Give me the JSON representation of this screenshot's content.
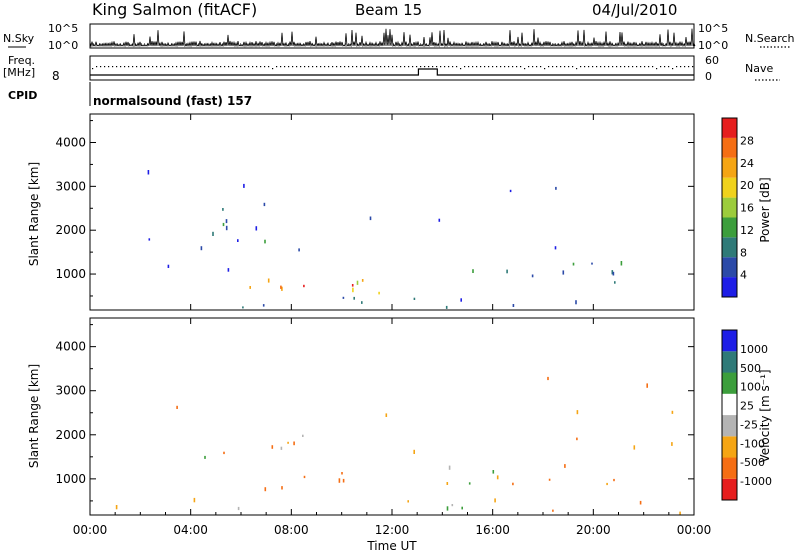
{
  "header": {
    "station": "King Salmon (fitACF)",
    "beam": "Beam 15",
    "date": "04/Jul/2010"
  },
  "status": {
    "nsky_label": "N.Sky",
    "nsky_ticks": [
      "10^5",
      "10^0"
    ],
    "nsearch_label": "N.Search",
    "nsearch_ticks": [
      "10^5",
      "10^0"
    ],
    "freq_label": "Freq.",
    "freq_unit": "[MHz]",
    "freq_ticks": [
      "8"
    ],
    "nave_label": "Nave",
    "nave_ticks": [
      "60",
      "0"
    ],
    "cpid_label": "CPID",
    "cpid_text": "normalsound (fast) 157"
  },
  "colors": {
    "power": [
      "#1e1ee6",
      "#2b4aa8",
      "#2f7a78",
      "#3c9e3c",
      "#9ccc3c",
      "#f0d21c",
      "#f5a514",
      "#f56e14",
      "#e61e1e"
    ],
    "velocity": [
      "#e61e1e",
      "#f56e14",
      "#f5a514",
      "#b4b4b4",
      "#ffffff",
      "#3c9e3c",
      "#2f7a78",
      "#1e1ee6"
    ]
  },
  "chart_data": [
    {
      "type": "heatmap",
      "panel": "power",
      "ylabel": "Slant Range [km]",
      "ylim": [
        180,
        4650
      ],
      "xlim_hours": [
        0,
        24
      ],
      "y_ticks": [
        1000,
        2000,
        3000,
        4000
      ],
      "colorbar": {
        "label": "Power [dB]",
        "ticks": [
          "28",
          "24",
          "20",
          "16",
          "12",
          "8",
          "4"
        ],
        "range": [
          0,
          30
        ]
      },
      "echo_regions": [
        {
          "t0": 5.5,
          "t1": 13.0,
          "r0": 450,
          "r1": 900,
          "level": 18
        },
        {
          "t0": 7.0,
          "t1": 10.5,
          "r0": 550,
          "r1": 900,
          "level": 26
        },
        {
          "t0": 0.0,
          "t1": 24.0,
          "r0": 180,
          "r1": 450,
          "level": 6
        },
        {
          "t0": 0.3,
          "t1": 6.0,
          "r0": 900,
          "r1": 1150,
          "level": 5
        },
        {
          "t0": 4.0,
          "t1": 8.5,
          "r0": 1300,
          "r1": 2300,
          "level": 7
        },
        {
          "t0": 13.8,
          "t1": 15.0,
          "r0": 1900,
          "r1": 2300,
          "level": 8
        },
        {
          "t0": 14.0,
          "t1": 24.0,
          "r0": 700,
          "r1": 1300,
          "level": 8
        },
        {
          "t0": 0.0,
          "t1": 24.0,
          "r0": 1500,
          "r1": 3500,
          "level": 3
        }
      ]
    },
    {
      "type": "heatmap",
      "panel": "velocity",
      "xlabel": "Time UT",
      "ylabel": "Slant Range [km]",
      "ylim": [
        180,
        4650
      ],
      "xlim_hours": [
        0,
        24
      ],
      "y_ticks": [
        1000,
        2000,
        3000,
        4000
      ],
      "x_ticks": [
        "00:00",
        "04:00",
        "08:00",
        "12:00",
        "16:00",
        "20:00",
        "00:00"
      ],
      "colorbar": {
        "label": "Velocity [m s⁻¹]",
        "ticks": [
          "1000",
          "500",
          "100",
          "25",
          "-25",
          "-100",
          "-500",
          "-1000"
        ],
        "range": [
          -1000,
          1000
        ]
      },
      "echo_regions": [
        {
          "t0": 0.0,
          "t1": 24.0,
          "r0": 180,
          "r1": 500,
          "level": 0
        },
        {
          "t0": 6.0,
          "t1": 11.0,
          "r0": 700,
          "r1": 1200,
          "level": -200
        },
        {
          "t0": 11.0,
          "t1": 13.0,
          "r0": 750,
          "r1": 1100,
          "level": 80
        },
        {
          "t0": 4.0,
          "t1": 8.5,
          "r0": 1300,
          "r1": 2300,
          "level": -30
        },
        {
          "t0": 14.0,
          "t1": 24.0,
          "r0": 700,
          "r1": 1300,
          "level": 10
        },
        {
          "t0": 0.0,
          "t1": 24.0,
          "r0": 1500,
          "r1": 3500,
          "level": -60
        }
      ]
    }
  ]
}
